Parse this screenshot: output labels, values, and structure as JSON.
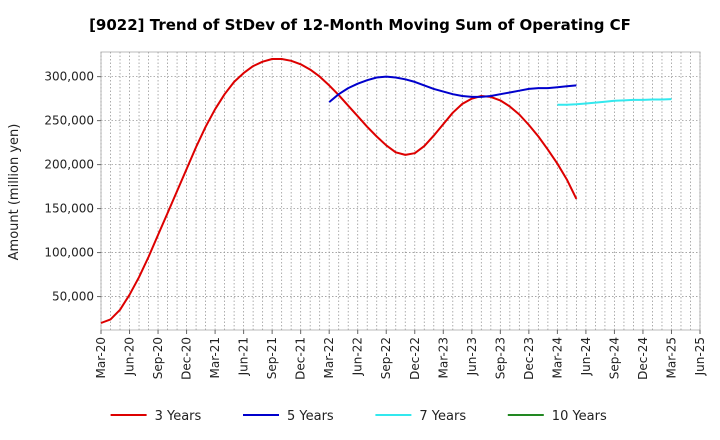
{
  "chart_data": {
    "type": "line",
    "title": "[9022]  Trend of StDev of 12-Month Moving Sum of Operating CF",
    "xlabel": "",
    "ylabel": "Amount (million yen)",
    "x_ticks": [
      "Mar-20",
      "Jun-20",
      "Sep-20",
      "Dec-20",
      "Mar-21",
      "Jun-21",
      "Sep-21",
      "Dec-21",
      "Mar-22",
      "Jun-22",
      "Sep-22",
      "Dec-22",
      "Mar-23",
      "Jun-23",
      "Sep-23",
      "Dec-23",
      "Mar-24",
      "Jun-24",
      "Sep-24",
      "Dec-24",
      "Mar-25",
      "Jun-25"
    ],
    "y_ticks": [
      "50,000",
      "100,000",
      "150,000",
      "200,000",
      "250,000",
      "300,000"
    ],
    "y_tick_values": [
      50000,
      100000,
      150000,
      200000,
      250000,
      300000
    ],
    "ylim": [
      12000,
      328000
    ],
    "grid": true,
    "legend_position": "bottom",
    "series": [
      {
        "name": "3 Years",
        "color": "#dd0000",
        "points": [
          [
            "Mar-20",
            20000
          ],
          [
            "Apr-20",
            24000
          ],
          [
            "May-20",
            35000
          ],
          [
            "Jun-20",
            52000
          ],
          [
            "Jul-20",
            72000
          ],
          [
            "Aug-20",
            95000
          ],
          [
            "Sep-20",
            120000
          ],
          [
            "Oct-20",
            145000
          ],
          [
            "Nov-20",
            170000
          ],
          [
            "Dec-20",
            195000
          ],
          [
            "Jan-21",
            220000
          ],
          [
            "Feb-21",
            243000
          ],
          [
            "Mar-21",
            263000
          ],
          [
            "Apr-21",
            280000
          ],
          [
            "May-21",
            294000
          ],
          [
            "Jun-21",
            304000
          ],
          [
            "Jul-21",
            312000
          ],
          [
            "Aug-21",
            317000
          ],
          [
            "Sep-21",
            320000
          ],
          [
            "Oct-21",
            320000
          ],
          [
            "Nov-21",
            318000
          ],
          [
            "Dec-21",
            314000
          ],
          [
            "Jan-22",
            308000
          ],
          [
            "Feb-22",
            300000
          ],
          [
            "Mar-22",
            290000
          ],
          [
            "Apr-22",
            279000
          ],
          [
            "May-22",
            267000
          ],
          [
            "Jun-22",
            255000
          ],
          [
            "Jul-22",
            243000
          ],
          [
            "Aug-22",
            232000
          ],
          [
            "Sep-22",
            222000
          ],
          [
            "Oct-22",
            214000
          ],
          [
            "Nov-22",
            211000
          ],
          [
            "Dec-22",
            213000
          ],
          [
            "Jan-23",
            221000
          ],
          [
            "Feb-23",
            233000
          ],
          [
            "Mar-23",
            246000
          ],
          [
            "Apr-23",
            259000
          ],
          [
            "May-23",
            269000
          ],
          [
            "Jun-23",
            275000
          ],
          [
            "Jul-23",
            278000
          ],
          [
            "Aug-23",
            277000
          ],
          [
            "Sep-23",
            273000
          ],
          [
            "Oct-23",
            266000
          ],
          [
            "Nov-23",
            257000
          ],
          [
            "Dec-23",
            245000
          ],
          [
            "Jan-24",
            232000
          ],
          [
            "Feb-24",
            217000
          ],
          [
            "Mar-24",
            201000
          ],
          [
            "Apr-24",
            183000
          ],
          [
            "May-24",
            161000
          ]
        ]
      },
      {
        "name": "5 Years",
        "color": "#0000cc",
        "points": [
          [
            "Mar-22",
            271000
          ],
          [
            "Apr-22",
            280000
          ],
          [
            "May-22",
            287000
          ],
          [
            "Jun-22",
            292000
          ],
          [
            "Jul-22",
            296000
          ],
          [
            "Aug-22",
            299000
          ],
          [
            "Sep-22",
            300000
          ],
          [
            "Oct-22",
            299000
          ],
          [
            "Nov-22",
            297000
          ],
          [
            "Dec-22",
            294000
          ],
          [
            "Jan-23",
            290000
          ],
          [
            "Feb-23",
            286000
          ],
          [
            "Mar-23",
            283000
          ],
          [
            "Apr-23",
            280000
          ],
          [
            "May-23",
            278000
          ],
          [
            "Jun-23",
            277000
          ],
          [
            "Jul-23",
            277000
          ],
          [
            "Aug-23",
            278000
          ],
          [
            "Sep-23",
            280000
          ],
          [
            "Oct-23",
            282000
          ],
          [
            "Nov-23",
            284000
          ],
          [
            "Dec-23",
            286000
          ],
          [
            "Jan-24",
            287000
          ],
          [
            "Feb-24",
            287000
          ],
          [
            "Mar-24",
            288000
          ],
          [
            "Apr-24",
            289000
          ],
          [
            "May-24",
            290000
          ]
        ]
      },
      {
        "name": "7 Years",
        "color": "#33e8ee",
        "points": [
          [
            "Mar-24",
            268000
          ],
          [
            "Apr-24",
            268000
          ],
          [
            "May-24",
            268500
          ],
          [
            "Jun-24",
            269500
          ],
          [
            "Jul-24",
            270500
          ],
          [
            "Aug-24",
            271500
          ],
          [
            "Sep-24",
            272500
          ],
          [
            "Oct-24",
            273000
          ],
          [
            "Nov-24",
            273500
          ],
          [
            "Dec-24",
            273500
          ],
          [
            "Jan-25",
            274000
          ],
          [
            "Feb-25",
            274000
          ],
          [
            "Mar-25",
            274500
          ]
        ]
      },
      {
        "name": "10 Years",
        "color": "#228822",
        "points": []
      }
    ]
  }
}
